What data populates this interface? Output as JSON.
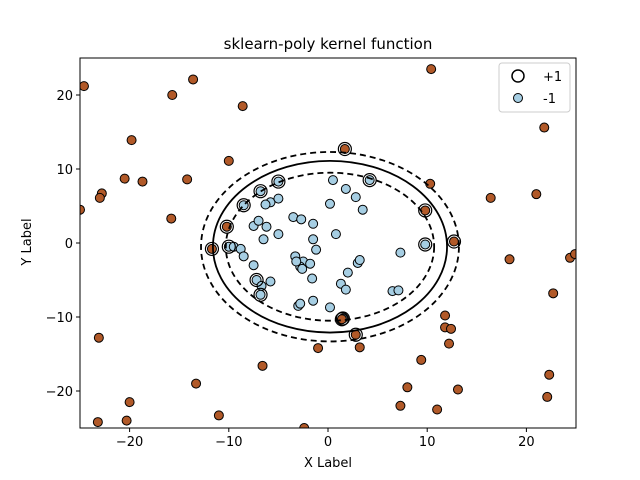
{
  "chart_data": {
    "type": "scatter",
    "title": "sklearn-poly kernel function",
    "xlabel": "X Label",
    "ylabel": "Y Label",
    "xlim": [
      -25,
      25
    ],
    "ylim": [
      -25,
      25
    ],
    "xticks": [
      -20,
      -10,
      0,
      10,
      20
    ],
    "yticks": [
      -20,
      -10,
      0,
      10,
      20
    ],
    "tick_labels": {
      "x": [
        "−20",
        "−10",
        "0",
        "10",
        "20"
      ],
      "y": [
        "−20",
        "−10",
        "0",
        "10",
        "20"
      ]
    },
    "grid": false,
    "legend": {
      "placement": "top-right",
      "entries": [
        {
          "label": "+1",
          "marker": "open-circle"
        },
        {
          "label": "-1",
          "marker": "filled-circle"
        }
      ]
    },
    "colors": {
      "class_a": "#a6cee3",
      "class_b": "#b15928",
      "edge": "#000000"
    },
    "decision_boundary": {
      "cx": 0.2,
      "cy": -0.5,
      "rx": 11.8,
      "ry": 11.6
    },
    "margins": [
      {
        "cx": 0.2,
        "cy": -0.5,
        "rx": 10.5,
        "ry": 10.0
      },
      {
        "cx": 0.2,
        "cy": -0.5,
        "rx": 13.0,
        "ry": 12.8
      }
    ],
    "series": [
      {
        "values": [
          [
            -8.5,
            5.1
          ],
          [
            -6.8,
            7.0
          ],
          [
            -5,
            8.3
          ],
          [
            -5.8,
            5.5
          ],
          [
            -6.3,
            5.2
          ],
          [
            -5,
            6
          ],
          [
            -7.5,
            2.3
          ],
          [
            -7,
            3
          ],
          [
            -6.5,
            0.5
          ],
          [
            -6.2,
            2.2
          ],
          [
            -5,
            1.2
          ],
          [
            -3.5,
            3.5
          ],
          [
            -2.7,
            3.2
          ],
          [
            -1.5,
            2.6
          ],
          [
            -1.5,
            0.5
          ],
          [
            -10,
            -0.5
          ],
          [
            -9.5,
            -0.5
          ],
          [
            -8.8,
            -0.8
          ],
          [
            -8.5,
            -1.8
          ],
          [
            -7.5,
            -3
          ],
          [
            -7.2,
            -5
          ],
          [
            -6.7,
            -5.8
          ],
          [
            -6.8,
            -7
          ],
          [
            -5.8,
            -5.2
          ],
          [
            -3.3,
            -1.8
          ],
          [
            -2.5,
            -2.5
          ],
          [
            -2.8,
            -3.2
          ],
          [
            -3.2,
            -2.5
          ],
          [
            -1.8,
            -2.8
          ],
          [
            -1.2,
            -0.9
          ],
          [
            -1.6,
            -4.8
          ],
          [
            -2.6,
            -3.5
          ],
          [
            -3,
            -8.5
          ],
          [
            -2.8,
            -8.2
          ],
          [
            -1.5,
            -7.8
          ],
          [
            0.2,
            -8.7
          ],
          [
            0.8,
            1.2
          ],
          [
            0.5,
            8.5
          ],
          [
            0.2,
            5.3
          ],
          [
            1.8,
            7.3
          ],
          [
            2.8,
            6.2
          ],
          [
            3.5,
            4.5
          ],
          [
            4.2,
            8.5
          ],
          [
            1.3,
            -5.5
          ],
          [
            2,
            -4
          ],
          [
            1.8,
            -6.3
          ],
          [
            3,
            -2.7
          ],
          [
            3.2,
            -2.3
          ],
          [
            7.3,
            -1.3
          ],
          [
            6.5,
            -6.5
          ],
          [
            7.1,
            -6.4
          ],
          [
            9.8,
            -0.2
          ],
          [
            1.5,
            -10.2
          ]
        ]
      },
      {
        "values": [
          [
            -25,
            4.5
          ],
          [
            -24.6,
            21.2
          ],
          [
            -22.8,
            6.7
          ],
          [
            -23,
            6.1
          ],
          [
            -20.5,
            8.7
          ],
          [
            -19.8,
            13.9
          ],
          [
            -18.7,
            8.3
          ],
          [
            -15.7,
            20
          ],
          [
            -15.8,
            3.3
          ],
          [
            -14.2,
            8.6
          ],
          [
            -13.6,
            22.1
          ],
          [
            -10,
            11.1
          ],
          [
            -8.6,
            18.5
          ],
          [
            -10.2,
            2.2
          ],
          [
            -11.7,
            -0.8
          ],
          [
            -23.1,
            -12.8
          ],
          [
            -23.2,
            -24.2
          ],
          [
            -20.3,
            -24
          ],
          [
            -20,
            -21.5
          ],
          [
            -13.3,
            -19
          ],
          [
            -11,
            -23.3
          ],
          [
            -6.6,
            -16.6
          ],
          [
            -2.4,
            -25
          ],
          [
            -1,
            -14.2
          ],
          [
            1.7,
            12.7
          ],
          [
            1.4,
            -10.3
          ],
          [
            2.8,
            -12.4
          ],
          [
            3.2,
            -14.1
          ],
          [
            7.3,
            -22
          ],
          [
            8,
            -19.5
          ],
          [
            9.4,
            -15.8
          ],
          [
            10.3,
            8
          ],
          [
            9.8,
            4.4
          ],
          [
            12.7,
            0.2
          ],
          [
            11,
            -22.5
          ],
          [
            11.8,
            -9.8
          ],
          [
            11.8,
            -11.4
          ],
          [
            12.4,
            -11.6
          ],
          [
            12.2,
            -13.6
          ],
          [
            13.1,
            -19.8
          ],
          [
            16.4,
            6.1
          ],
          [
            18.3,
            -2.2
          ],
          [
            21,
            6.6
          ],
          [
            21.8,
            15.6
          ],
          [
            10.4,
            23.5
          ],
          [
            22.3,
            -17.8
          ],
          [
            22.1,
            -20.8
          ],
          [
            22.7,
            -6.8
          ],
          [
            24.4,
            -2
          ],
          [
            24.9,
            -1.5
          ]
        ]
      }
    ],
    "support_vectors": [
      [
        -8.5,
        5.1
      ],
      [
        -6.8,
        7.0
      ],
      [
        -5,
        8.3
      ],
      [
        -10,
        -0.5
      ],
      [
        -7.2,
        -5
      ],
      [
        -6.8,
        -7
      ],
      [
        4.2,
        8.5
      ],
      [
        1.5,
        -10.2
      ],
      [
        9.8,
        -0.2
      ],
      [
        1.7,
        12.7
      ],
      [
        -10.2,
        2.2
      ],
      [
        -11.7,
        -0.8
      ],
      [
        1.4,
        -10.3
      ],
      [
        2.8,
        -12.4
      ],
      [
        9.8,
        4.4
      ],
      [
        12.7,
        0.2
      ]
    ]
  }
}
